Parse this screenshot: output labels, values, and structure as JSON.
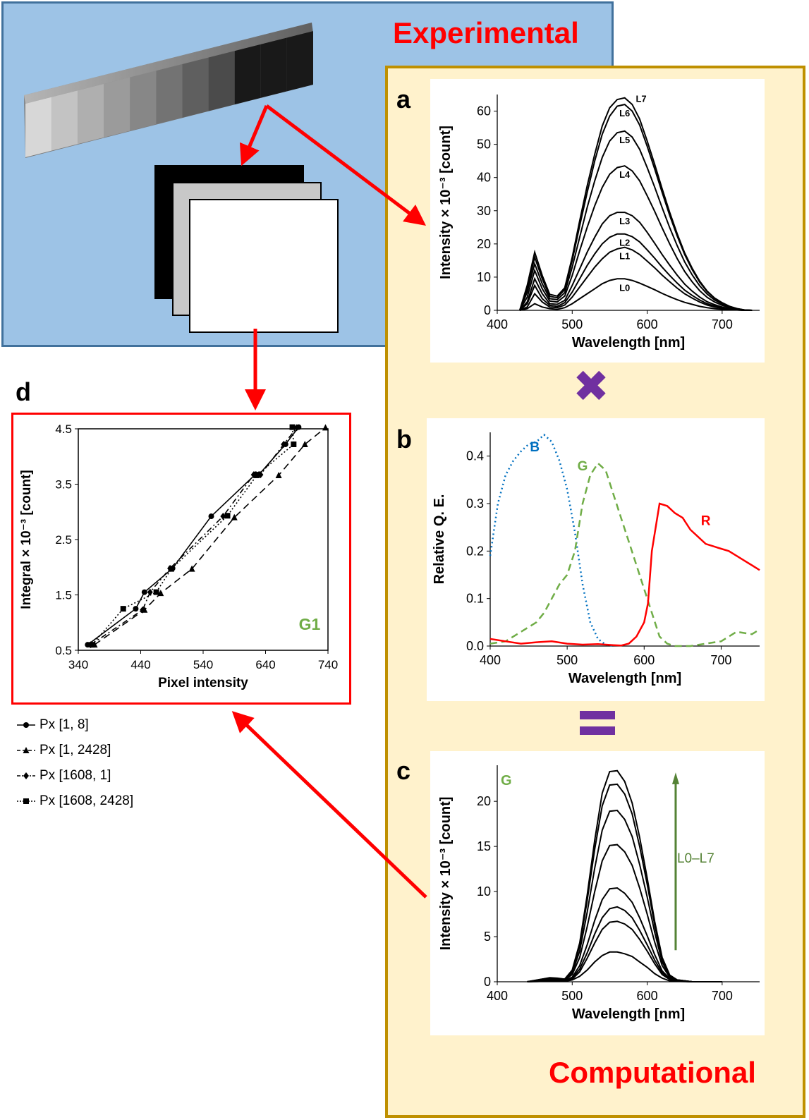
{
  "labels": {
    "experimental": "Experimental",
    "computational": "Computational",
    "multiply_symbol": "✖",
    "equals_symbol": "="
  },
  "panels": {
    "a": {
      "letter": "a"
    },
    "b": {
      "letter": "b"
    },
    "c": {
      "letter": "c"
    },
    "d": {
      "letter": "d"
    }
  },
  "colors": {
    "experimental_bg": "#9dc3e6",
    "experimental_border": "#41719c",
    "computational_bg": "#fff2cc",
    "computational_border": "#bf9000",
    "arrow": "#ff0000",
    "operator": "#7030a0",
    "blue_channel": "#0070c0",
    "green_channel": "#70ad47",
    "red_channel": "#ff0000"
  },
  "step_wedge": {
    "steps": 11
  },
  "chart_data": [
    {
      "id": "a",
      "type": "line",
      "title": "",
      "xlabel": "Wavelength [nm]",
      "ylabel": "Intensity × 10⁻³ [count]",
      "xlim": [
        400,
        750
      ],
      "ylim": [
        0,
        65
      ],
      "xticks": [
        400,
        500,
        600,
        700
      ],
      "yticks": [
        0,
        10,
        20,
        30,
        40,
        50,
        60
      ],
      "x": [
        430,
        440,
        450,
        460,
        470,
        480,
        490,
        500,
        510,
        520,
        530,
        540,
        550,
        560,
        570,
        580,
        590,
        600,
        610,
        620,
        630,
        640,
        650,
        660,
        670,
        680,
        690,
        700,
        710,
        720,
        730,
        740
      ],
      "series": [
        {
          "name": "L0",
          "values": [
            0,
            0.5,
            2,
            1,
            0.5,
            0.3,
            0.8,
            2,
            3.5,
            5,
            6.5,
            8,
            9,
            9.5,
            9.5,
            9,
            8.2,
            7.2,
            6.2,
            5.1,
            4.1,
            3.2,
            2.4,
            1.8,
            1.2,
            0.8,
            0.5,
            0.3,
            0.2,
            0.1,
            0,
            0
          ]
        },
        {
          "name": "L1",
          "values": [
            0,
            1,
            5,
            2.5,
            1,
            0.8,
            1.6,
            4,
            7,
            10,
            13,
            15.5,
            17.5,
            18.5,
            19,
            18.2,
            16.8,
            14.8,
            12.8,
            10.6,
            8.6,
            6.7,
            5,
            3.7,
            2.5,
            1.6,
            1,
            0.6,
            0.3,
            0.1,
            0,
            0
          ]
        },
        {
          "name": "L2",
          "values": [
            0,
            2,
            7.5,
            3.5,
            1.5,
            1.2,
            2.3,
            5.5,
            9.5,
            13.5,
            17,
            20,
            22,
            23,
            23,
            22.2,
            20.6,
            18.2,
            15.7,
            13,
            10.5,
            8.2,
            6.1,
            4.5,
            3.1,
            2,
            1.3,
            0.8,
            0.4,
            0.2,
            0,
            0
          ]
        },
        {
          "name": "L3",
          "values": [
            0,
            2.5,
            9.5,
            5,
            2,
            1.8,
            3,
            7.5,
            12.5,
            17.5,
            22,
            26,
            28.5,
            29.5,
            29.5,
            28.5,
            26.5,
            23.5,
            20.2,
            16.8,
            13.6,
            10.6,
            7.9,
            5.8,
            4,
            2.6,
            1.7,
            1,
            0.5,
            0.2,
            0,
            0
          ]
        },
        {
          "name": "L4",
          "values": [
            0,
            4,
            12,
            6.5,
            2.8,
            2.5,
            4.3,
            10.5,
            18,
            25,
            31.5,
            37,
            41,
            43,
            43.5,
            42,
            39,
            34.5,
            29.8,
            24.8,
            20,
            15.6,
            11.7,
            8.6,
            5.9,
            3.9,
            2.5,
            1.5,
            0.8,
            0.3,
            0.1,
            0
          ]
        },
        {
          "name": "L5",
          "values": [
            0,
            5.5,
            14,
            8,
            3.5,
            3.2,
            5.3,
            13,
            22,
            31,
            39,
            46,
            51,
            53.5,
            54,
            52.2,
            48.5,
            43,
            37.1,
            30.9,
            24.9,
            19.5,
            14.6,
            10.7,
            7.4,
            4.9,
            3.1,
            1.9,
            1,
            0.4,
            0.1,
            0
          ]
        },
        {
          "name": "L6",
          "values": [
            0,
            6.5,
            16,
            9.5,
            4.2,
            3.8,
            6.2,
            15,
            25.5,
            35.5,
            45,
            53,
            58.5,
            61.5,
            62,
            60,
            55.8,
            49.4,
            42.6,
            35.5,
            28.6,
            22.4,
            16.8,
            12.3,
            8.5,
            5.6,
            3.6,
            2.2,
            1.2,
            0.5,
            0.1,
            0
          ]
        },
        {
          "name": "L7",
          "values": [
            0,
            7.5,
            17.5,
            10.5,
            4.8,
            4.3,
            6.8,
            16,
            27,
            37.5,
            47,
            55.5,
            61,
            63.5,
            64,
            62,
            57.6,
            51,
            44,
            36.6,
            29.5,
            23.1,
            17.3,
            12.7,
            8.8,
            5.8,
            3.7,
            2.3,
            1.2,
            0.5,
            0.1,
            0
          ]
        }
      ]
    },
    {
      "id": "b",
      "type": "line",
      "title": "",
      "xlabel": "Wavelength [nm]",
      "ylabel": "Relative Q. E.",
      "xlim": [
        400,
        750
      ],
      "ylim": [
        0,
        0.45
      ],
      "xticks": [
        400,
        500,
        600,
        700
      ],
      "yticks": [
        0.0,
        0.1,
        0.2,
        0.3,
        0.4
      ],
      "series": [
        {
          "name": "B",
          "style": "dotted",
          "x": [
            400,
            410,
            420,
            430,
            440,
            450,
            460,
            470,
            480,
            490,
            500,
            510,
            520,
            530,
            540,
            550,
            560
          ],
          "values": [
            0.19,
            0.3,
            0.36,
            0.39,
            0.41,
            0.425,
            0.43,
            0.445,
            0.43,
            0.39,
            0.33,
            0.24,
            0.13,
            0.05,
            0.015,
            0.003,
            0
          ]
        },
        {
          "name": "G",
          "style": "dashed",
          "x": [
            400,
            420,
            440,
            460,
            470,
            480,
            490,
            500,
            510,
            520,
            530,
            540,
            550,
            560,
            570,
            580,
            590,
            600,
            610,
            620,
            630,
            640,
            660,
            680,
            700,
            720,
            740,
            750
          ],
          "values": [
            0.005,
            0.01,
            0.03,
            0.05,
            0.07,
            0.1,
            0.13,
            0.15,
            0.2,
            0.3,
            0.36,
            0.385,
            0.37,
            0.32,
            0.27,
            0.22,
            0.17,
            0.12,
            0.07,
            0.02,
            0.005,
            0,
            0,
            0.005,
            0.01,
            0.03,
            0.025,
            0.035
          ]
        },
        {
          "name": "R",
          "style": "solid",
          "x": [
            400,
            420,
            440,
            460,
            480,
            500,
            520,
            540,
            560,
            570,
            580,
            590,
            600,
            605,
            610,
            620,
            630,
            640,
            650,
            660,
            670,
            680,
            690,
            700,
            710,
            720,
            730,
            740,
            750
          ],
          "values": [
            0.015,
            0.01,
            0.005,
            0.008,
            0.01,
            0.005,
            0.003,
            0.004,
            0.002,
            0.001,
            0.005,
            0.02,
            0.05,
            0.09,
            0.2,
            0.3,
            0.295,
            0.28,
            0.27,
            0.245,
            0.23,
            0.215,
            0.21,
            0.205,
            0.2,
            0.19,
            0.18,
            0.17,
            0.16
          ]
        }
      ]
    },
    {
      "id": "c",
      "type": "line",
      "title": "G",
      "annotation": "L0–L7",
      "xlabel": "Wavelength [nm]",
      "ylabel": "Intensity × 10⁻³ [count]",
      "xlim": [
        400,
        750
      ],
      "ylim": [
        0,
        24
      ],
      "xticks": [
        400,
        500,
        600,
        700
      ],
      "yticks": [
        0,
        5,
        10,
        15,
        20
      ],
      "x": [
        440,
        460,
        470,
        480,
        490,
        500,
        510,
        520,
        530,
        540,
        550,
        560,
        570,
        580,
        590,
        600,
        610,
        620,
        630,
        640,
        660,
        700
      ],
      "series": [
        {
          "name": "L0",
          "values": [
            0,
            0.05,
            0.1,
            0.1,
            0.05,
            0.2,
            0.6,
            1.3,
            2.2,
            2.9,
            3.3,
            3.3,
            3.1,
            2.8,
            2.2,
            1.6,
            0.9,
            0.4,
            0.1,
            0.05,
            0,
            0
          ]
        },
        {
          "name": "L1",
          "values": [
            0,
            0.1,
            0.15,
            0.15,
            0.1,
            0.3,
            1.1,
            2.6,
            4.3,
            5.8,
            6.6,
            6.7,
            6.4,
            5.8,
            4.7,
            3.4,
            2,
            0.8,
            0.25,
            0.1,
            0,
            0
          ]
        },
        {
          "name": "L2",
          "values": [
            0,
            0.1,
            0.2,
            0.15,
            0.12,
            0.4,
            1.4,
            3.2,
            5.3,
            7.1,
            8.1,
            8.3,
            7.9,
            7.1,
            5.7,
            4.1,
            2.4,
            1,
            0.3,
            0.1,
            0,
            0
          ]
        },
        {
          "name": "L3",
          "values": [
            0,
            0.15,
            0.25,
            0.2,
            0.15,
            0.5,
            1.8,
            4.1,
            6.8,
            9.1,
            10.3,
            10.4,
            9.8,
            8.8,
            7.1,
            5.1,
            3,
            1.2,
            0.35,
            0.1,
            0,
            0
          ]
        },
        {
          "name": "L4",
          "values": [
            0,
            0.2,
            0.3,
            0.25,
            0.2,
            0.8,
            2.7,
            6.1,
            10,
            13.4,
            15.1,
            15.2,
            14.4,
            12.9,
            10.4,
            7.5,
            4.4,
            1.8,
            0.5,
            0.15,
            0,
            0
          ]
        },
        {
          "name": "L5",
          "values": [
            0,
            0.25,
            0.35,
            0.3,
            0.25,
            1,
            3.4,
            7.7,
            12.6,
            16.8,
            18.9,
            19,
            18,
            16.1,
            13,
            9.4,
            5.5,
            2.2,
            0.6,
            0.2,
            0,
            0
          ]
        },
        {
          "name": "L6",
          "values": [
            0,
            0.3,
            0.4,
            0.35,
            0.3,
            1.2,
            4,
            9,
            14.7,
            19.5,
            21.8,
            21.9,
            20.8,
            18.6,
            15,
            10.8,
            6.3,
            2.5,
            0.7,
            0.2,
            0,
            0
          ]
        },
        {
          "name": "L7",
          "values": [
            0,
            0.3,
            0.45,
            0.4,
            0.3,
            1.3,
            4.3,
            9.6,
            15.7,
            20.9,
            23.3,
            23.4,
            22.2,
            19.8,
            16,
            11.5,
            6.7,
            2.7,
            0.75,
            0.2,
            0,
            0
          ]
        }
      ]
    },
    {
      "id": "d",
      "type": "scatter",
      "title": "G1",
      "xlabel": "Pixel intensity",
      "ylabel": "Integral × 10⁻³ [count]",
      "xlim": [
        340,
        740
      ],
      "ylim": [
        0.5,
        4.5
      ],
      "xticks": [
        340,
        440,
        540,
        640,
        740
      ],
      "yticks": [
        0.5,
        1.5,
        2.5,
        3.5,
        4.5
      ],
      "series": [
        {
          "name": "Px [1, 8]",
          "marker": "circle",
          "line": "solid",
          "x": [
            355,
            432,
            446,
            491,
            553,
            624,
            630,
            672,
            693
          ],
          "y": [
            0.6,
            1.25,
            1.55,
            1.98,
            2.92,
            3.68,
            3.68,
            4.22,
            4.53
          ]
        },
        {
          "name": "Px [1, 2428]",
          "marker": "triangle",
          "line": "dashed",
          "x": [
            366,
            446,
            472,
            522,
            590,
            661,
            703,
            736
          ],
          "y": [
            0.6,
            1.23,
            1.53,
            1.97,
            2.9,
            3.66,
            4.22,
            4.52
          ]
        },
        {
          "name": "Px [1608, 1]",
          "marker": "diamond",
          "line": "dashdot",
          "x": [
            360,
            443,
            455,
            487,
            572,
            621,
            632,
            669,
            690
          ],
          "y": [
            0.6,
            1.23,
            1.55,
            1.98,
            2.92,
            3.67,
            3.67,
            4.22,
            4.52
          ]
        },
        {
          "name": "Px [1608, 2428]",
          "marker": "square",
          "line": "dotted",
          "x": [
            362,
            412,
            465,
            489,
            579,
            626,
            685,
            683
          ],
          "y": [
            0.6,
            1.25,
            1.55,
            1.97,
            2.93,
            3.66,
            4.22,
            4.53
          ]
        }
      ]
    }
  ]
}
